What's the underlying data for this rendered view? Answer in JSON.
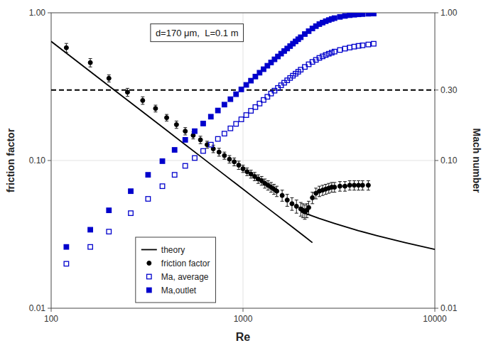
{
  "chart_data": {
    "type": "scatter",
    "xlabel": "Re",
    "ylabel": "friction factor",
    "y2label": "Mach number",
    "log": true,
    "grid": true,
    "legend": "lower left",
    "xlim": [
      100,
      10000
    ],
    "ylim": [
      0.01,
      1.0
    ],
    "y2lim": [
      0.01,
      1.0
    ],
    "xticks": [
      100,
      1000,
      10000
    ],
    "yticks": [
      0.01,
      {
        "value": 0.1,
        "label": "0.10"
      },
      {
        "value": 1,
        "label": "1.00"
      }
    ],
    "y2ticks": [
      0.01,
      {
        "value": 0.1,
        "label": "0.10"
      },
      {
        "value": 0.3,
        "label": "0.30"
      },
      {
        "value": 1,
        "label": "1.00"
      }
    ],
    "annotations": [
      {
        "text": "d=170 μm,  L=0.1 m"
      }
    ],
    "reference_lines": [
      {
        "value": 0.3,
        "color": "#000000",
        "line_style": "dashed"
      }
    ],
    "series": [
      {
        "name": "theory",
        "type": "line",
        "color": "#000000",
        "line_style": "solid",
        "x": [
          100,
          200,
          300,
          400,
          500,
          600,
          700,
          800,
          900,
          1000,
          1200,
          1500,
          1800,
          2100,
          2300,
          null,
          2000,
          2500,
          3000,
          4000,
          5000,
          7000,
          10000
        ],
        "values": [
          0.64,
          0.32,
          0.2133,
          0.16,
          0.128,
          0.1067,
          0.0914,
          0.08,
          0.0711,
          0.064,
          0.0533,
          0.0427,
          0.0356,
          0.0305,
          0.0278,
          null,
          0.045,
          0.0405,
          0.0375,
          0.0335,
          0.031,
          0.0278,
          0.025
        ]
      },
      {
        "name": "friction factor",
        "type": "scatter",
        "marker": "circle",
        "color": "#000000",
        "x": [
          120,
          160,
          200,
          250,
          300,
          350,
          400,
          450,
          500,
          550,
          600,
          650,
          700,
          750,
          800,
          850,
          900,
          950,
          1000,
          1050,
          1100,
          1150,
          1200,
          1250,
          1300,
          1350,
          1400,
          1450,
          1500,
          1600,
          1700,
          1800,
          1900,
          2000,
          2050,
          2100,
          2150,
          2200,
          2300,
          2400,
          2500,
          2600,
          2700,
          2800,
          2900,
          3000,
          3200,
          3400,
          3600,
          3800,
          4000,
          4200,
          4500
        ],
        "values": [
          0.58,
          0.46,
          0.36,
          0.29,
          0.255,
          0.225,
          0.195,
          0.175,
          0.158,
          0.148,
          0.138,
          0.128,
          0.12,
          0.114,
          0.108,
          0.102,
          0.098,
          0.093,
          0.088,
          0.084,
          0.081,
          0.078,
          0.075,
          0.073,
          0.07,
          0.068,
          0.066,
          0.064,
          0.062,
          0.058,
          0.054,
          0.051,
          0.049,
          0.047,
          0.046,
          0.045,
          0.046,
          0.048,
          0.056,
          0.06,
          0.062,
          0.063,
          0.064,
          0.065,
          0.066,
          0.066,
          0.067,
          0.067,
          0.068,
          0.068,
          0.068,
          0.068,
          0.068
        ],
        "errors": [
          0.04,
          0.03,
          0.02,
          0.018,
          0.015,
          0.012,
          0.01,
          0.01,
          0.009,
          0.008,
          0.008,
          0.007,
          0.007,
          0.007,
          0.006,
          0.006,
          0.006,
          0.006,
          0.005,
          0.005,
          0.005,
          0.005,
          0.005,
          0.005,
          0.005,
          0.005,
          0.005,
          0.005,
          0.005,
          0.005,
          0.005,
          0.005,
          0.005,
          0.005,
          0.005,
          0.005,
          0.005,
          0.005,
          0.005,
          0.005,
          0.005,
          0.005,
          0.005,
          0.005,
          0.005,
          0.005,
          0.005,
          0.005,
          0.005,
          0.005,
          0.005,
          0.005,
          0.005
        ]
      },
      {
        "name": "Ma, average",
        "type": "scatter",
        "marker": "square-open",
        "color": "#0000cc",
        "axis": "y2",
        "x": [
          120,
          160,
          200,
          260,
          320,
          380,
          440,
          500,
          560,
          620,
          680,
          740,
          800,
          860,
          920,
          980,
          1040,
          1100,
          1160,
          1220,
          1280,
          1340,
          1400,
          1460,
          1520,
          1580,
          1640,
          1700,
          1760,
          1820,
          1880,
          1940,
          2000,
          2100,
          2200,
          2300,
          2400,
          2500,
          2600,
          2700,
          2800,
          2900,
          3000,
          3200,
          3400,
          3600,
          3800,
          4000,
          4200,
          4500,
          4800
        ],
        "values": [
          0.02,
          0.026,
          0.033,
          0.044,
          0.055,
          0.067,
          0.08,
          0.092,
          0.104,
          0.116,
          0.128,
          0.14,
          0.152,
          0.165,
          0.177,
          0.19,
          0.203,
          0.217,
          0.23,
          0.243,
          0.257,
          0.27,
          0.284,
          0.297,
          0.31,
          0.323,
          0.336,
          0.349,
          0.362,
          0.375,
          0.387,
          0.399,
          0.412,
          0.43,
          0.448,
          0.465,
          0.48,
          0.495,
          0.507,
          0.518,
          0.528,
          0.537,
          0.546,
          0.56,
          0.572,
          0.582,
          0.59,
          0.597,
          0.602,
          0.61,
          0.617
        ]
      },
      {
        "name": "Ma,outlet",
        "type": "scatter",
        "marker": "square",
        "color": "#0000cc",
        "axis": "y2",
        "x": [
          120,
          160,
          200,
          260,
          320,
          380,
          440,
          500,
          560,
          620,
          680,
          740,
          800,
          860,
          920,
          980,
          1040,
          1100,
          1160,
          1220,
          1280,
          1340,
          1400,
          1460,
          1520,
          1580,
          1640,
          1700,
          1760,
          1820,
          1880,
          1940,
          2000,
          2100,
          2200,
          2300,
          2400,
          2500,
          2600,
          2700,
          2800,
          2900,
          3000,
          3200,
          3400,
          3600,
          3800,
          4000,
          4200,
          4500,
          4800
        ],
        "values": [
          0.026,
          0.034,
          0.046,
          0.062,
          0.08,
          0.099,
          0.118,
          0.138,
          0.158,
          0.178,
          0.198,
          0.218,
          0.239,
          0.26,
          0.281,
          0.303,
          0.325,
          0.347,
          0.37,
          0.393,
          0.415,
          0.438,
          0.461,
          0.484,
          0.506,
          0.529,
          0.551,
          0.573,
          0.595,
          0.618,
          0.64,
          0.662,
          0.683,
          0.718,
          0.751,
          0.783,
          0.812,
          0.838,
          0.858,
          0.877,
          0.893,
          0.908,
          0.92,
          0.938,
          0.952,
          0.963,
          0.97,
          0.976,
          0.98,
          0.985,
          0.988
        ]
      }
    ]
  }
}
